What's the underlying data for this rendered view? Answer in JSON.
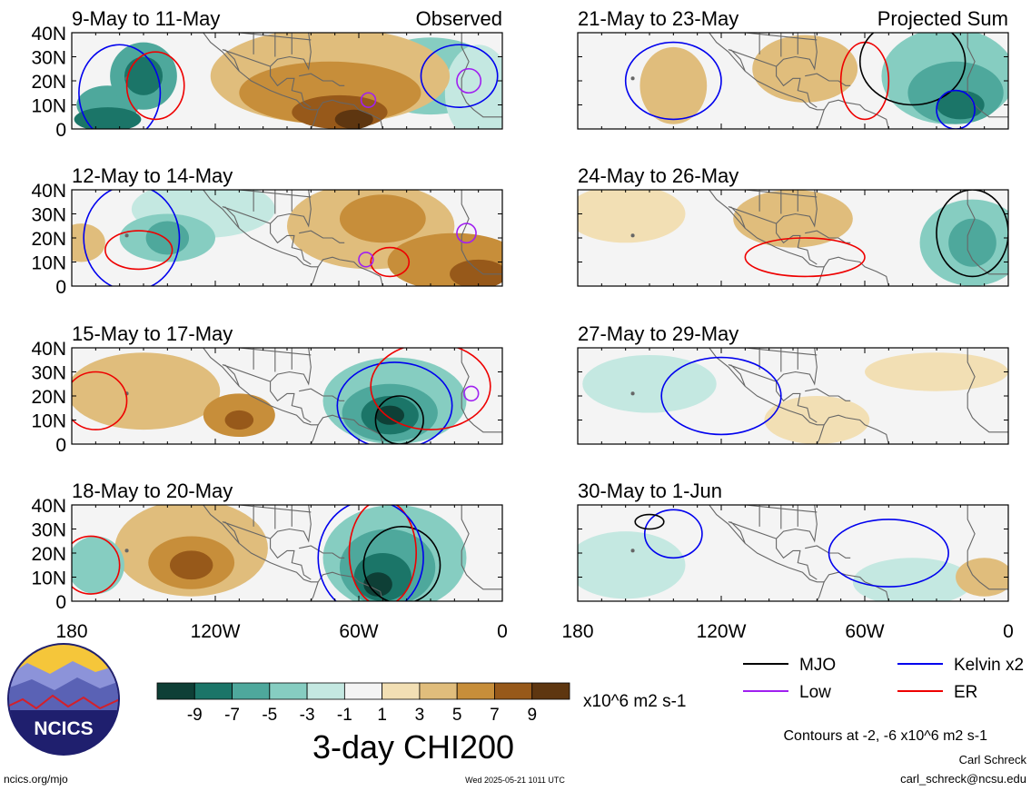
{
  "page": {
    "main_title": "3-day CHI200",
    "units": "x10^6 m2 s-1",
    "contour_note": "Contours at -2, -6 x10^6 m2 s-1",
    "author": "Carl Schreck",
    "email": "carl_schreck@ncsu.edu",
    "site": "ncics.org/mjo",
    "timestamp": "Wed 2025-05-21 1011 UTC",
    "logo_text": "NCICS"
  },
  "chart_data": {
    "type": "heatmap",
    "variable": "3-day CHI200",
    "units": "x10^6 m2 s-1",
    "x_axis": {
      "ticks": [
        "180",
        "120W",
        "60W",
        "0"
      ],
      "range": [
        -180,
        0
      ]
    },
    "y_axis": {
      "ticks": [
        "40N",
        "30N",
        "20N",
        "10N",
        "0"
      ],
      "range": [
        0,
        40
      ]
    },
    "colorbar": {
      "ticks": [
        "-9",
        "-7",
        "-5",
        "-3",
        "-1",
        "1",
        "3",
        "5",
        "7",
        "9"
      ],
      "colors": [
        "#0e3f36",
        "#1b7568",
        "#4ea89c",
        "#86cdc1",
        "#c4e8e1",
        "#f4f4f4",
        "#f2dfb4",
        "#e0bd7c",
        "#c78e3a",
        "#97591a",
        "#5e3610"
      ]
    },
    "legend": [
      {
        "label": "MJO",
        "color": "#000000"
      },
      {
        "label": "Kelvin x2",
        "color": "#0000ee"
      },
      {
        "label": "Low",
        "color": "#a020f0"
      },
      {
        "label": "ER",
        "color": "#ee0000"
      }
    ],
    "panels": [
      {
        "title": "9-May to 11-May",
        "tag": "Observed",
        "fill": [
          {
            "lon": -165,
            "lat": 10,
            "rx": 13,
            "ry": 8,
            "level": 2
          },
          {
            "lon": -150,
            "lat": 22,
            "rx": 14,
            "ry": 14,
            "level": 2
          },
          {
            "lon": -150,
            "lat": 22,
            "rx": 8,
            "ry": 8,
            "level": 1
          },
          {
            "lon": -165,
            "lat": 4,
            "rx": 14,
            "ry": 5,
            "level": 1
          },
          {
            "lon": -30,
            "lat": 22,
            "rx": 28,
            "ry": 16,
            "level": 3
          },
          {
            "lon": -10,
            "lat": 15,
            "rx": 14,
            "ry": 20,
            "level": 4
          },
          {
            "lon": -72,
            "lat": 22,
            "rx": 50,
            "ry": 20,
            "level": 7
          },
          {
            "lon": -72,
            "lat": 15,
            "rx": 38,
            "ry": 13,
            "level": 8
          },
          {
            "lon": -68,
            "lat": 7,
            "rx": 20,
            "ry": 7,
            "level": 9
          },
          {
            "lon": -62,
            "lat": 4,
            "rx": 8,
            "ry": 4,
            "level": 10
          }
        ],
        "contours": [
          {
            "type": "Kelvin",
            "lon": -160,
            "lat": 15,
            "rx": 17,
            "ry": 20
          },
          {
            "type": "ER",
            "lon": -145,
            "lat": 18,
            "rx": 12,
            "ry": 14
          },
          {
            "type": "Kelvin",
            "lon": -18,
            "lat": 22,
            "rx": 16,
            "ry": 13
          },
          {
            "type": "Low",
            "lon": -14,
            "lat": 20,
            "rx": 5,
            "ry": 5
          },
          {
            "type": "Low",
            "lon": -56,
            "lat": 12,
            "rx": 3,
            "ry": 3
          }
        ]
      },
      {
        "title": "12-May to 14-May",
        "tag": "",
        "fill": [
          {
            "lon": -125,
            "lat": 32,
            "rx": 30,
            "ry": 12,
            "level": 4
          },
          {
            "lon": -140,
            "lat": 20,
            "rx": 20,
            "ry": 10,
            "level": 3
          },
          {
            "lon": -140,
            "lat": 20,
            "rx": 9,
            "ry": 7,
            "level": 2
          },
          {
            "lon": -176,
            "lat": 18,
            "rx": 10,
            "ry": 8,
            "level": 7
          },
          {
            "lon": -55,
            "lat": 25,
            "rx": 35,
            "ry": 18,
            "level": 7
          },
          {
            "lon": -50,
            "lat": 28,
            "rx": 18,
            "ry": 10,
            "level": 8
          },
          {
            "lon": -20,
            "lat": 10,
            "rx": 28,
            "ry": 12,
            "level": 8
          },
          {
            "lon": -10,
            "lat": 5,
            "rx": 12,
            "ry": 6,
            "level": 9
          }
        ],
        "contours": [
          {
            "type": "ER",
            "lon": -152,
            "lat": 15,
            "rx": 14,
            "ry": 8
          },
          {
            "type": "Kelvin",
            "lon": -155,
            "lat": 20,
            "rx": 20,
            "ry": 22
          },
          {
            "type": "ER",
            "lon": -47,
            "lat": 10,
            "rx": 8,
            "ry": 6
          },
          {
            "type": "Low",
            "lon": -57,
            "lat": 11,
            "rx": 3,
            "ry": 3
          },
          {
            "type": "Low",
            "lon": -15,
            "lat": 22,
            "rx": 4,
            "ry": 4
          }
        ]
      },
      {
        "title": "15-May to 17-May",
        "tag": "",
        "fill": [
          {
            "lon": -150,
            "lat": 22,
            "rx": 32,
            "ry": 16,
            "level": 7
          },
          {
            "lon": -110,
            "lat": 12,
            "rx": 15,
            "ry": 9,
            "level": 8
          },
          {
            "lon": -110,
            "lat": 10,
            "rx": 6,
            "ry": 4,
            "level": 9
          },
          {
            "lon": -45,
            "lat": 18,
            "rx": 30,
            "ry": 18,
            "level": 3
          },
          {
            "lon": -47,
            "lat": 13,
            "rx": 20,
            "ry": 12,
            "level": 2
          },
          {
            "lon": -47,
            "lat": 12,
            "rx": 12,
            "ry": 8,
            "level": 1
          },
          {
            "lon": -47,
            "lat": 12,
            "rx": 6,
            "ry": 4,
            "level": 0
          }
        ],
        "contours": [
          {
            "type": "ER",
            "lon": -170,
            "lat": 18,
            "rx": 13,
            "ry": 12
          },
          {
            "type": "MJO",
            "lon": -43,
            "lat": 10,
            "rx": 10,
            "ry": 10
          },
          {
            "type": "Kelvin",
            "lon": -45,
            "lat": 16,
            "rx": 24,
            "ry": 18
          },
          {
            "type": "ER",
            "lon": -30,
            "lat": 24,
            "rx": 25,
            "ry": 18
          },
          {
            "type": "Low",
            "lon": -13,
            "lat": 21,
            "rx": 3,
            "ry": 3
          }
        ]
      },
      {
        "title": "18-May to 20-May",
        "tag": "",
        "fill": [
          {
            "lon": -130,
            "lat": 22,
            "rx": 32,
            "ry": 20,
            "level": 7
          },
          {
            "lon": -130,
            "lat": 16,
            "rx": 18,
            "ry": 11,
            "level": 8
          },
          {
            "lon": -130,
            "lat": 15,
            "rx": 9,
            "ry": 6,
            "level": 9
          },
          {
            "lon": -170,
            "lat": 15,
            "rx": 12,
            "ry": 12,
            "level": 3
          },
          {
            "lon": -45,
            "lat": 18,
            "rx": 30,
            "ry": 22,
            "level": 3
          },
          {
            "lon": -48,
            "lat": 14,
            "rx": 20,
            "ry": 16,
            "level": 2
          },
          {
            "lon": -50,
            "lat": 10,
            "rx": 12,
            "ry": 10,
            "level": 1
          },
          {
            "lon": -52,
            "lat": 7,
            "rx": 6,
            "ry": 5,
            "level": 0
          }
        ],
        "contours": [
          {
            "type": "ER",
            "lon": -172,
            "lat": 15,
            "rx": 12,
            "ry": 12
          },
          {
            "type": "MJO",
            "lon": -42,
            "lat": 15,
            "rx": 16,
            "ry": 16
          },
          {
            "type": "ER",
            "lon": -50,
            "lat": 20,
            "rx": 14,
            "ry": 22
          },
          {
            "type": "Kelvin",
            "lon": -55,
            "lat": 18,
            "rx": 22,
            "ry": 24
          }
        ]
      },
      {
        "title": "21-May to 23-May",
        "tag": "Projected Sum",
        "fill": [
          {
            "lon": -140,
            "lat": 18,
            "rx": 14,
            "ry": 16,
            "level": 7
          },
          {
            "lon": -85,
            "lat": 25,
            "rx": 22,
            "ry": 14,
            "level": 7
          },
          {
            "lon": -25,
            "lat": 22,
            "rx": 28,
            "ry": 20,
            "level": 3
          },
          {
            "lon": -22,
            "lat": 15,
            "rx": 20,
            "ry": 13,
            "level": 2
          },
          {
            "lon": -20,
            "lat": 10,
            "rx": 10,
            "ry": 6,
            "level": 1
          }
        ],
        "contours": [
          {
            "type": "Kelvin",
            "lon": -140,
            "lat": 20,
            "rx": 20,
            "ry": 16
          },
          {
            "type": "ER",
            "lon": -60,
            "lat": 20,
            "rx": 10,
            "ry": 16
          },
          {
            "type": "MJO",
            "lon": -40,
            "lat": 28,
            "rx": 22,
            "ry": 18
          },
          {
            "type": "Kelvin",
            "lon": -22,
            "lat": 8,
            "rx": 8,
            "ry": 8
          }
        ]
      },
      {
        "title": "24-May to 26-May",
        "tag": "",
        "fill": [
          {
            "lon": -160,
            "lat": 30,
            "rx": 25,
            "ry": 12,
            "level": 6
          },
          {
            "lon": -90,
            "lat": 28,
            "rx": 25,
            "ry": 12,
            "level": 7
          },
          {
            "lon": -15,
            "lat": 18,
            "rx": 22,
            "ry": 18,
            "level": 3
          },
          {
            "lon": -15,
            "lat": 18,
            "rx": 10,
            "ry": 10,
            "level": 2
          }
        ],
        "contours": [
          {
            "type": "ER",
            "lon": -85,
            "lat": 12,
            "rx": 25,
            "ry": 8
          },
          {
            "type": "MJO",
            "lon": -15,
            "lat": 22,
            "rx": 15,
            "ry": 18
          }
        ]
      },
      {
        "title": "27-May to 29-May",
        "tag": "",
        "fill": [
          {
            "lon": -150,
            "lat": 25,
            "rx": 28,
            "ry": 12,
            "level": 4
          },
          {
            "lon": -80,
            "lat": 10,
            "rx": 22,
            "ry": 10,
            "level": 6
          },
          {
            "lon": -30,
            "lat": 30,
            "rx": 30,
            "ry": 8,
            "level": 6
          }
        ],
        "contours": [
          {
            "type": "Kelvin",
            "lon": -120,
            "lat": 20,
            "rx": 25,
            "ry": 16
          }
        ]
      },
      {
        "title": "30-May to 1-Jun",
        "tag": "",
        "fill": [
          {
            "lon": -160,
            "lat": 15,
            "rx": 25,
            "ry": 14,
            "level": 4
          },
          {
            "lon": -40,
            "lat": 8,
            "rx": 25,
            "ry": 10,
            "level": 4
          },
          {
            "lon": -10,
            "lat": 10,
            "rx": 12,
            "ry": 8,
            "level": 7
          }
        ],
        "contours": [
          {
            "type": "Kelvin",
            "lon": -140,
            "lat": 28,
            "rx": 12,
            "ry": 10
          },
          {
            "type": "MJO",
            "lon": -150,
            "lat": 33,
            "rx": 6,
            "ry": 3
          },
          {
            "type": "Kelvin",
            "lon": -50,
            "lat": 20,
            "rx": 25,
            "ry": 14
          }
        ]
      }
    ]
  }
}
